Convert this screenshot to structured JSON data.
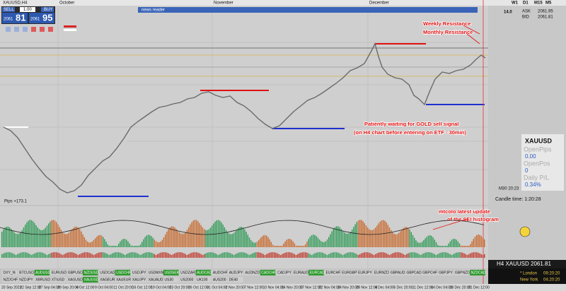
{
  "toolbar": {
    "sell": "SELL",
    "lot": "1.00",
    "buy": "BUY",
    "sell_big": "2061",
    "sell_small": "81",
    "buy_big": "2061",
    "buy_small": "95"
  },
  "window": {
    "title": "XAUUSD,H4",
    "news": "news reader",
    "months": [
      "October",
      "November",
      "December"
    ],
    "timeframes": [
      "W1",
      "D1",
      "M15",
      "M5"
    ],
    "zoom": "14.0"
  },
  "quote": [
    [
      "ASK",
      "2061.95"
    ],
    [
      "BID",
      "2061.81"
    ]
  ],
  "annotations": {
    "weekly": "Weekly Resistance",
    "monthly": "Monthly Resistance",
    "waiting": "Patiently waiting for GOLD sell signal",
    "waiting_note": "(on H4 chart before entering on ETF - 30min)",
    "histogram": "mtcolo latest update",
    "histogram_note": "of the SEI histogram"
  },
  "panel": {
    "symbol": "XAUUSD",
    "rows": [
      [
        "OpenPips",
        "0.00"
      ],
      [
        "OpenPos",
        "0"
      ],
      [
        "Daily P/L",
        "0.34%"
      ]
    ]
  },
  "status": {
    "pips": "Pips +173.1",
    "m30": "M30 20:23",
    "candle": "Candle time:  1:20:28",
    "h4": "H4 XAUUSD 2061.81",
    "london": "* London",
    "london_time": "09:20:20",
    "ny": "New York",
    "ny_time": "04:20:20"
  },
  "symbols": [
    [
      {
        "label": "DXY_f4",
        "active": false
      },
      {
        "label": "BTCUSD",
        "active": false
      },
      {
        "label": "AUDUSD",
        "active": true
      },
      {
        "label": "EURUSD",
        "active": false
      },
      {
        "label": "GBPUSD",
        "active": false
      },
      {
        "label": "NZDUSD",
        "active": true
      },
      {
        "label": "USDCAD",
        "active": false
      },
      {
        "label": "USDCHF",
        "active": true
      },
      {
        "label": "USDJPY",
        "active": false
      },
      {
        "label": "USDMXN",
        "active": false
      },
      {
        "label": "USDSEK",
        "active": true
      },
      {
        "label": "USDZAR",
        "active": false
      },
      {
        "label": "AUDCAD",
        "active": true
      },
      {
        "label": "AUDCHF",
        "active": false
      },
      {
        "label": "AUDJPY",
        "active": false
      },
      {
        "label": "AUDNZD",
        "active": false
      },
      {
        "label": "CADCHF",
        "active": true
      },
      {
        "label": "CADJPY",
        "active": false
      },
      {
        "label": "EURAUD",
        "active": false
      },
      {
        "label": "EURCAD",
        "active": true
      },
      {
        "label": "EURCHF",
        "active": false
      },
      {
        "label": "EURGBP",
        "active": false
      },
      {
        "label": "EURJPY",
        "active": false
      },
      {
        "label": "EURNZD",
        "active": false
      },
      {
        "label": "GBPAUD",
        "active": false
      },
      {
        "label": "GBPCAD",
        "active": false
      },
      {
        "label": "GBPCHF",
        "active": false
      },
      {
        "label": "GBPJPY",
        "active": false
      },
      {
        "label": "GBPNZD",
        "active": false
      },
      {
        "label": "NZDCAD",
        "active": true
      }
    ],
    [
      {
        "label": "NZDCHF",
        "active": false
      },
      {
        "label": "NZDJPY",
        "active": false
      },
      {
        "label": "XBRUSD",
        "active": false
      },
      {
        "label": "XTIUSD",
        "active": false
      },
      {
        "label": "XAGUSD",
        "active": false
      },
      {
        "label": "XAUUSD",
        "active": true
      },
      {
        "label": "XAGEUR",
        "active": false
      },
      {
        "label": "XAUEUR",
        "active": false
      },
      {
        "label": "XAUJPY",
        "active": false
      },
      {
        "label": "XAUAUD",
        "active": false
      },
      {
        "label": "US30",
        "active": false
      },
      {
        "label": "US2000",
        "active": false
      },
      {
        "label": "UK100",
        "active": false
      },
      {
        "label": "AUS200",
        "active": false
      },
      {
        "label": "DE40",
        "active": false
      }
    ]
  ],
  "dates": [
    "20 Sep 2023",
    "22 Sep 12:00",
    "27 Sep 04:00",
    "29 Sep 20:00",
    "4 Oct 12:00",
    "9 Oct 04:00",
    "11 Oct 20:00",
    "16 Oct 12:00",
    "19 Oct 04:00",
    "23 Oct 20:00",
    "26 Oct 12:00",
    "31 Oct 04:00",
    "2 Nov 20:00",
    "7 Nov 12:00",
    "10 Nov 04:00",
    "14 Nov 20:00",
    "17 Nov 12:00",
    "22 Nov 04:00",
    "24 Nov 20:00",
    "29 Nov 12:00",
    "4 Dec 04:00",
    "6 Dec 20:00",
    "11 Dec 12:00",
    "14 Dec 04:00",
    "18 Dec 20:00",
    "21 Dec 12:00"
  ]
}
